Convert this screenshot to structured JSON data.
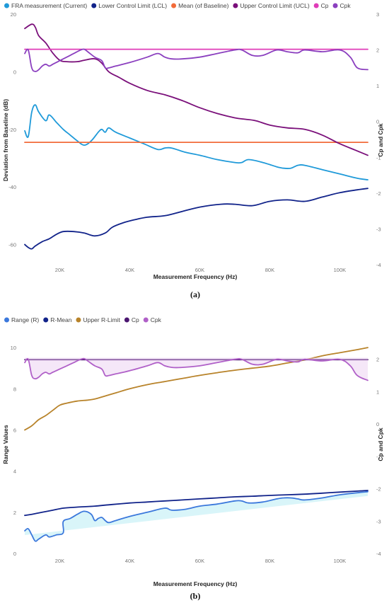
{
  "chart_data": [
    {
      "type": "line",
      "caption": "(a)",
      "xlabel": "Measurement Frequency (Hz)",
      "ylabel": "Deviation from Baseline (dB)",
      "y2label": "Cp and Cpk",
      "xlim": [
        10000,
        108000
      ],
      "ylim": [
        -67,
        20
      ],
      "y2lim": [
        -4,
        3
      ],
      "xticks": [
        20000,
        40000,
        60000,
        80000,
        100000
      ],
      "xtick_labels": [
        "20K",
        "40K",
        "60K",
        "80K",
        "100K"
      ],
      "yticks": [
        20,
        0,
        -20,
        -40,
        -60
      ],
      "yticks_labels": [
        "20",
        "0",
        "-20",
        "-40",
        "-60"
      ],
      "y2ticks": [
        3,
        2,
        1,
        0,
        -1,
        -2,
        -3,
        -4
      ],
      "y2ticks_labels": [
        "3",
        "2",
        "1",
        "0",
        "-1",
        "-2",
        "-3",
        "-4"
      ],
      "legend_position": "top-left",
      "grid": false,
      "series": [
        {
          "name": "FRA measurement (Current)",
          "color": "#1f9ad9",
          "axis": "left",
          "x": [
            10000,
            11000,
            12000,
            13000,
            14000,
            16000,
            17000,
            19000,
            21000,
            23000,
            25000,
            27000,
            29000,
            31000,
            32000,
            33000,
            34000,
            36000,
            40000,
            44000,
            48000,
            50000,
            52000,
            56000,
            60000,
            65000,
            70000,
            72000,
            74000,
            78000,
            82000,
            84000,
            86000,
            88000,
            90000,
            95000,
            100000,
            105000,
            108000
          ],
          "y": [
            -20.5,
            -22.5,
            -14,
            -11.5,
            -14,
            -17,
            -15,
            -17.5,
            -20,
            -22,
            -24,
            -25.5,
            -24,
            -21,
            -20,
            -21,
            -19.5,
            -21,
            -23,
            -25,
            -27,
            -26.5,
            -26.5,
            -28,
            -29,
            -30.5,
            -31.5,
            -31.5,
            -30.5,
            -31.5,
            -33,
            -33.5,
            -33.5,
            -32.5,
            -32.5,
            -34,
            -35.5,
            -37,
            -37.5
          ]
        },
        {
          "name": "Lower Control Limit (LCL)",
          "color": "#11238a",
          "axis": "left",
          "x": [
            10000,
            11000,
            12000,
            13000,
            15000,
            17000,
            19000,
            21000,
            24000,
            27000,
            30000,
            33000,
            35000,
            38000,
            41000,
            45000,
            50000,
            55000,
            60000,
            66000,
            70000,
            75000,
            80000,
            85000,
            90000,
            95000,
            100000,
            105000,
            108000
          ],
          "y": [
            -60,
            -61,
            -61.5,
            -60.5,
            -59,
            -58,
            -56.5,
            -55.5,
            -55.5,
            -56,
            -57,
            -56,
            -54,
            -52.5,
            -51.5,
            -50.5,
            -50,
            -48.5,
            -47,
            -46,
            -46,
            -46.5,
            -45,
            -44.5,
            -45,
            -43.5,
            -42,
            -41,
            -40.5
          ]
        },
        {
          "name": "Mean (of Baseline)",
          "color": "#f26b3a",
          "axis": "left",
          "x": [
            10000,
            108000
          ],
          "y": [
            -24.5,
            -24.5
          ]
        },
        {
          "name": "Upper Control Limit (UCL)",
          "color": "#7a0f7a",
          "axis": "left",
          "x": [
            10000,
            12000,
            13000,
            14000,
            16000,
            18000,
            20000,
            22000,
            25000,
            27000,
            30000,
            32000,
            34000,
            37000,
            40000,
            45000,
            50000,
            55000,
            60000,
            65000,
            70000,
            73000,
            76000,
            80000,
            85000,
            90000,
            95000,
            100000,
            105000,
            108000
          ],
          "y": [
            15,
            16.5,
            15.5,
            12.5,
            10,
            6.5,
            4,
            3.5,
            3.5,
            4,
            4.5,
            3,
            0,
            -2,
            -4,
            -6.5,
            -8,
            -10,
            -12.5,
            -14.5,
            -16,
            -16.5,
            -17,
            -18.5,
            -19.5,
            -20,
            -22,
            -25,
            -27.5,
            -29
          ]
        },
        {
          "name": "Cp",
          "color": "#e03cb8",
          "axis": "right",
          "x": [
            10000,
            108000
          ],
          "y": [
            2.02,
            2.02
          ]
        },
        {
          "name": "Cpk",
          "color": "#8b3fbf",
          "axis": "right",
          "x": [
            10000,
            11000,
            12000,
            13000,
            14000,
            15000,
            16000,
            17000,
            18000,
            20000,
            22000,
            24000,
            26000,
            27000,
            28000,
            30000,
            32000,
            33000,
            34000,
            36000,
            40000,
            45000,
            48000,
            50000,
            52000,
            55000,
            60000,
            65000,
            70000,
            72000,
            75000,
            78000,
            82000,
            85000,
            88000,
            90000,
            95000,
            100000,
            103000,
            105000,
            108000
          ],
          "y": [
            1.9,
            2.0,
            1.5,
            1.4,
            1.45,
            1.55,
            1.6,
            1.55,
            1.6,
            1.7,
            1.8,
            1.9,
            2.0,
            2.02,
            1.95,
            1.8,
            1.7,
            1.5,
            1.5,
            1.55,
            1.65,
            1.8,
            1.9,
            1.8,
            1.75,
            1.75,
            1.8,
            1.9,
            2.0,
            2.0,
            1.85,
            1.85,
            2.0,
            1.95,
            1.92,
            2.0,
            1.95,
            2.0,
            1.8,
            1.5,
            1.45
          ]
        }
      ]
    },
    {
      "type": "line",
      "caption": "(b)",
      "xlabel": "Measurement Frequency (Hz)",
      "ylabel": "Range Values",
      "y2label": "Cp and Cpk",
      "xlim": [
        10000,
        108000
      ],
      "ylim": [
        0,
        11
      ],
      "y2lim": [
        -4,
        3
      ],
      "xticks": [
        20000,
        40000,
        60000,
        80000,
        100000
      ],
      "xtick_labels": [
        "20K",
        "40K",
        "60K",
        "80K",
        "100K"
      ],
      "yticks": [
        10,
        8,
        6,
        4,
        2,
        0
      ],
      "yticks_labels": [
        "10",
        "8",
        "6",
        "4",
        "2",
        "0"
      ],
      "y2ticks": [
        2,
        1,
        0,
        -1,
        -2,
        -3,
        -4
      ],
      "y2ticks_labels": [
        "2",
        "1",
        "0",
        "-1",
        "-2",
        "-3",
        "-4"
      ],
      "legend_position": "top-left",
      "grid": false,
      "series": [
        {
          "name": "Range (R)",
          "color": "#3b78dc",
          "axis": "left",
          "x": [
            10000,
            11000,
            12000,
            13000,
            14000,
            16000,
            17000,
            19000,
            21000,
            21001,
            23000,
            25000,
            27000,
            29000,
            30000,
            31000,
            32000,
            33000,
            34000,
            36000,
            40000,
            45000,
            50000,
            52000,
            56000,
            60000,
            65000,
            70000,
            72000,
            74000,
            78000,
            82000,
            84000,
            86000,
            88000,
            90000,
            95000,
            100000,
            105000,
            108000
          ],
          "y": [
            1.1,
            1.2,
            0.9,
            0.6,
            0.7,
            0.9,
            0.8,
            0.9,
            1.0,
            1.55,
            1.7,
            1.9,
            2.05,
            1.9,
            1.6,
            1.7,
            1.75,
            1.6,
            1.5,
            1.6,
            1.8,
            2.0,
            2.2,
            2.1,
            2.15,
            2.3,
            2.4,
            2.55,
            2.55,
            2.45,
            2.5,
            2.65,
            2.7,
            2.7,
            2.65,
            2.6,
            2.7,
            2.85,
            2.95,
            3.0
          ]
        },
        {
          "name": "R-Mean",
          "color": "#11238a",
          "axis": "left",
          "x": [
            10000,
            12000,
            15000,
            18000,
            21000,
            25000,
            30000,
            35000,
            40000,
            45000,
            50000,
            55000,
            60000,
            65000,
            70000,
            75000,
            80000,
            85000,
            90000,
            95000,
            100000,
            105000,
            108000
          ],
          "y": [
            1.85,
            1.9,
            2.0,
            2.1,
            2.2,
            2.25,
            2.3,
            2.38,
            2.45,
            2.5,
            2.55,
            2.6,
            2.65,
            2.7,
            2.75,
            2.78,
            2.82,
            2.85,
            2.88,
            2.93,
            2.98,
            3.03,
            3.06
          ]
        },
        {
          "name": "Upper R-Limit",
          "color": "#b8832a",
          "axis": "left",
          "x": [
            10000,
            12000,
            14000,
            16000,
            18000,
            20000,
            22000,
            25000,
            28000,
            30000,
            33000,
            36000,
            40000,
            45000,
            50000,
            55000,
            60000,
            65000,
            70000,
            75000,
            80000,
            85000,
            90000,
            95000,
            100000,
            105000,
            108000
          ],
          "y": [
            6.0,
            6.2,
            6.5,
            6.7,
            6.95,
            7.2,
            7.3,
            7.4,
            7.45,
            7.5,
            7.65,
            7.8,
            8.0,
            8.2,
            8.35,
            8.5,
            8.65,
            8.78,
            8.9,
            9.0,
            9.1,
            9.25,
            9.4,
            9.6,
            9.75,
            9.9,
            10.0
          ]
        },
        {
          "name": "Cp",
          "color": "#4b1670",
          "axis": "right",
          "x": [
            10000,
            108000
          ],
          "y": [
            1.99,
            1.99
          ]
        },
        {
          "name": "Cpk",
          "color": "#b060c8",
          "axis": "right",
          "x": [
            10000,
            11000,
            12000,
            13000,
            14000,
            15000,
            16000,
            17000,
            18000,
            20000,
            22000,
            24000,
            26000,
            27000,
            28000,
            30000,
            32000,
            33000,
            34000,
            36000,
            40000,
            45000,
            48000,
            50000,
            52000,
            55000,
            60000,
            65000,
            70000,
            72000,
            75000,
            78000,
            82000,
            85000,
            88000,
            90000,
            95000,
            100000,
            103000,
            105000,
            108000
          ],
          "y": [
            1.9,
            2.0,
            1.5,
            1.4,
            1.45,
            1.55,
            1.6,
            1.55,
            1.6,
            1.7,
            1.8,
            1.9,
            2.0,
            2.02,
            1.95,
            1.8,
            1.7,
            1.5,
            1.5,
            1.55,
            1.65,
            1.8,
            1.9,
            1.8,
            1.75,
            1.75,
            1.8,
            1.9,
            2.0,
            2.0,
            1.85,
            1.85,
            2.0,
            1.95,
            1.92,
            2.0,
            1.95,
            2.0,
            1.8,
            1.5,
            1.35
          ]
        }
      ]
    }
  ]
}
